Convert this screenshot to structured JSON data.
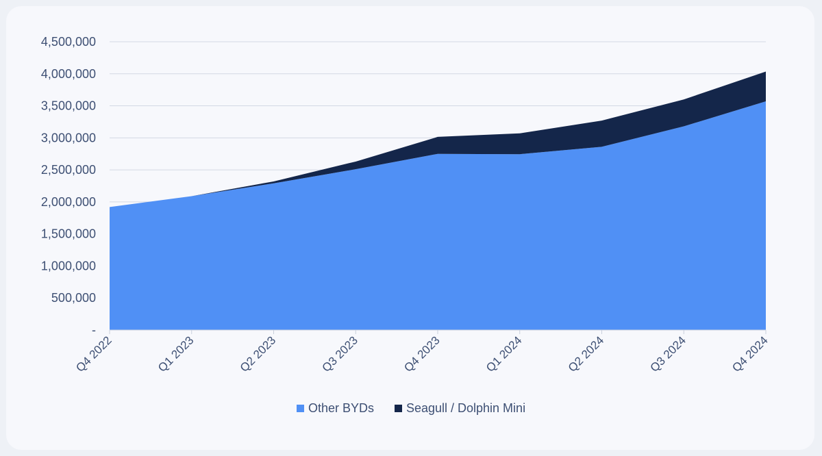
{
  "chart_data": {
    "type": "area",
    "stacked": true,
    "categories": [
      "Q4 2022",
      "Q1 2023",
      "Q2 2023",
      "Q3 2023",
      "Q4 2023",
      "Q1 2024",
      "Q2 2024",
      "Q3 2024",
      "Q4 2024"
    ],
    "series": [
      {
        "name": "Other BYDs",
        "color": "#5090f5",
        "values": [
          1920000,
          2090000,
          2290000,
          2510000,
          2750000,
          2745000,
          2860000,
          3180000,
          3570000
        ]
      },
      {
        "name": "Seagull / Dolphin Mini",
        "color": "#14264a",
        "values": [
          0,
          0,
          30000,
          120000,
          265000,
          325000,
          410000,
          420000,
          465000
        ]
      }
    ],
    "yticks": [
      "-",
      "500,000",
      "1,000,000",
      "1,500,000",
      "2,000,000",
      "2,500,000",
      "3,000,000",
      "3,500,000",
      "4,000,000",
      "4,500,000"
    ],
    "ylim": [
      0,
      4500000
    ],
    "grid": true,
    "legend_position": "bottom"
  }
}
